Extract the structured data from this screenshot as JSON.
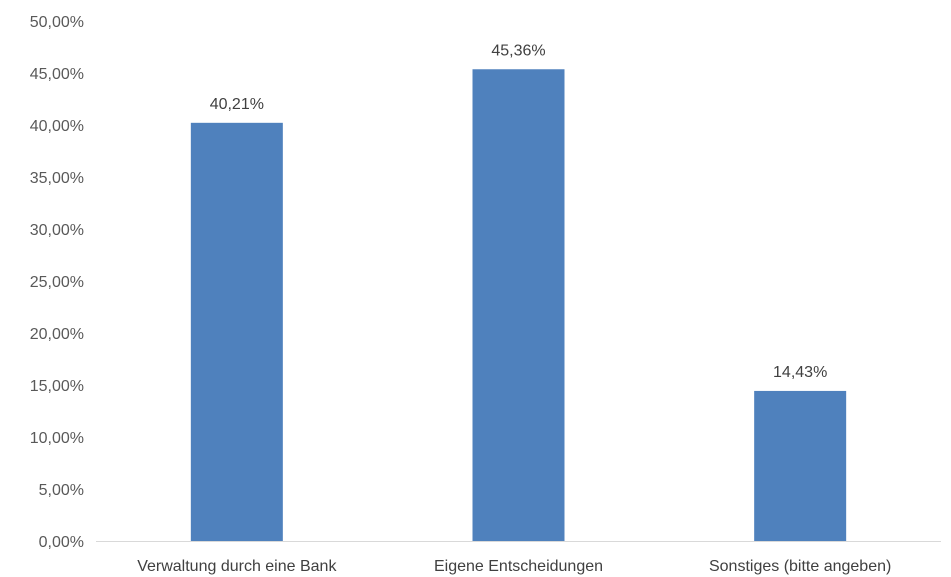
{
  "chart_data": {
    "type": "bar",
    "title": "",
    "xlabel": "",
    "ylabel": "",
    "categories": [
      "Verwaltung durch eine Bank",
      "Eigene Entscheidungen",
      "Sonstiges (bitte angeben)"
    ],
    "values": [
      40.21,
      45.36,
      14.43
    ],
    "data_labels": [
      "40,21%",
      "45,36%",
      "14,43%"
    ],
    "ylim": [
      0,
      50
    ],
    "yticks": [
      0,
      5,
      10,
      15,
      20,
      25,
      30,
      35,
      40,
      45,
      50
    ],
    "ytick_labels": [
      "0,00%",
      "5,00%",
      "10,00%",
      "15,00%",
      "20,00%",
      "25,00%",
      "30,00%",
      "35,00%",
      "40,00%",
      "45,00%",
      "50,00%"
    ],
    "grid": false,
    "legend": "none",
    "colors": {
      "bar": "#4f81bd",
      "axis": "#d9d9d9"
    }
  }
}
